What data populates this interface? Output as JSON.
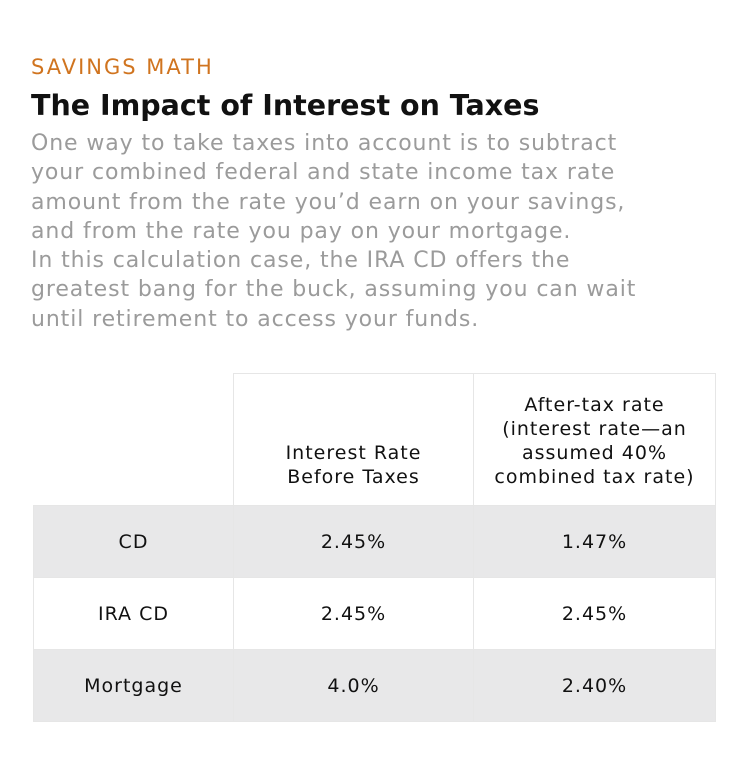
{
  "kicker": "SAVINGS MATH",
  "title": "The Impact of Interest on Taxes",
  "intro_lines": [
    "One way to take taxes into account is to subtract",
    "your combined federal and state income tax rate",
    "amount from the rate you’d earn on your savings,",
    "and from the rate you pay on your mortgage.",
    "In this calculation case, the IRA CD offers the",
    "greatest bang for the buck, assuming you can wait",
    "until retirement to access your funds."
  ],
  "table": {
    "header_col2": [
      "Interest Rate",
      "Before Taxes"
    ],
    "header_col3": [
      "After-tax rate",
      "(interest rate—an",
      "assumed 40%",
      "combined tax rate)"
    ],
    "rows": [
      {
        "label": "CD",
        "before": "2.45%",
        "after": "1.47%"
      },
      {
        "label": "IRA CD",
        "before": "2.45%",
        "after": "2.45%"
      },
      {
        "label": "Mortgage",
        "before": "4.0%",
        "after": "2.40%"
      }
    ]
  },
  "colors": {
    "kicker": "#d0741f",
    "title": "#111111",
    "intro": "#9b9b9b",
    "row_shade": "#e8e8e9",
    "grid": "#e6e6e6"
  }
}
